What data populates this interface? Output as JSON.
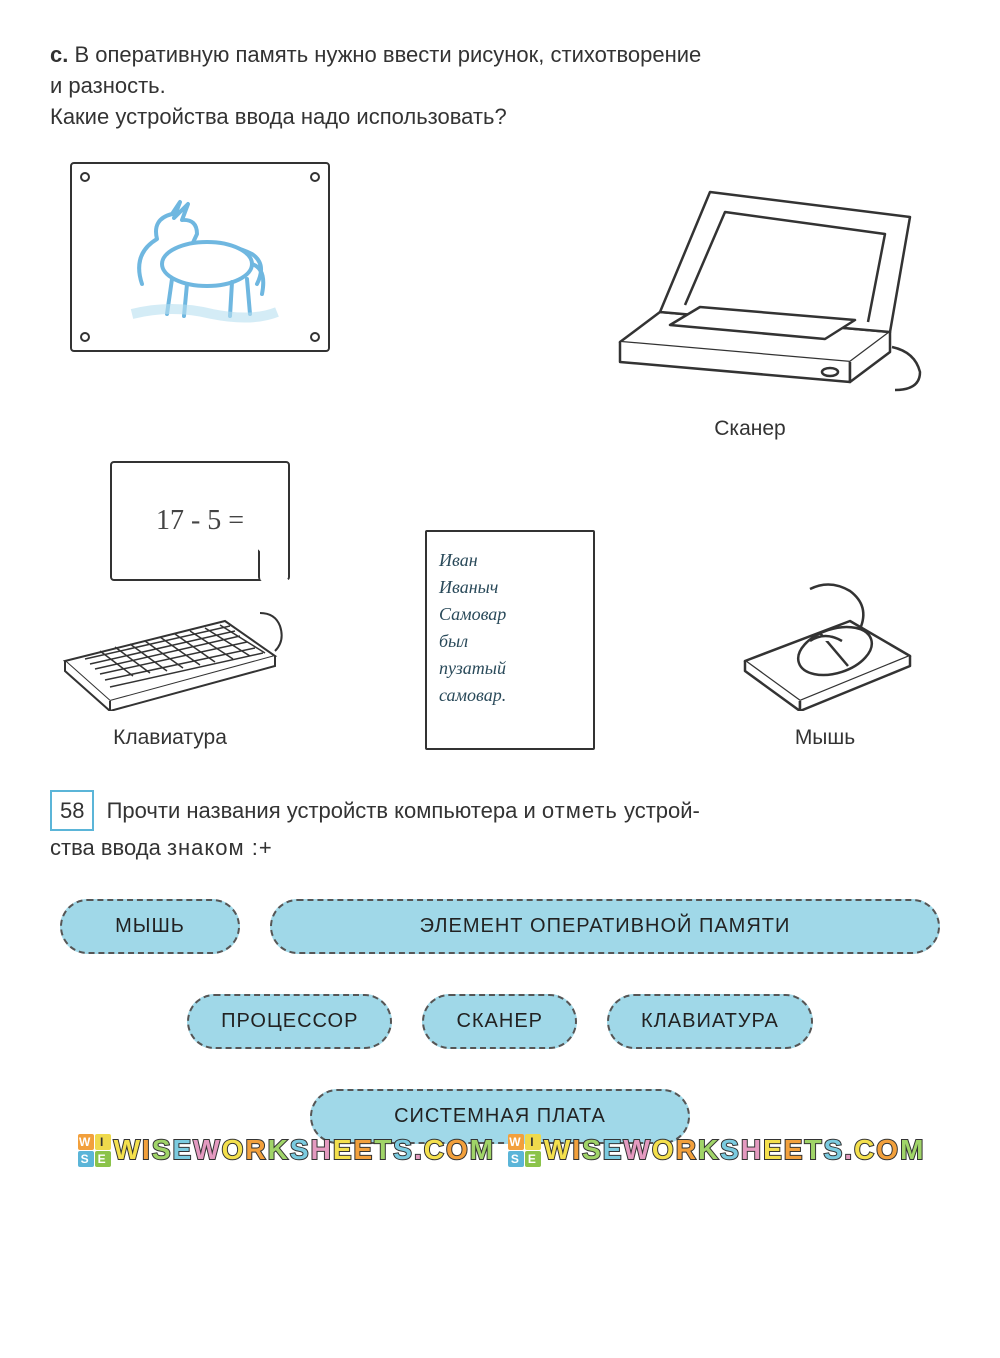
{
  "intro": {
    "marker": "c.",
    "line1_rest": "В оперативную память нужно ввести рисунок, стихотворение",
    "line2": "и разность.",
    "line3": "Какие устройства ввода надо использовать?"
  },
  "devices": {
    "scanner_label": "Сканер",
    "keyboard_label": "Клавиатура",
    "mouse_label": "Мышь"
  },
  "notes": {
    "math_text": "17 - 5 =",
    "poem_lines": [
      "Иван",
      "Иваныч",
      "Самовар",
      "был",
      "пузатый",
      "самовар."
    ]
  },
  "task58": {
    "number": "58",
    "text_a": "Прочти названия устройств компьютера и ",
    "text_b_spaced": "отметь",
    "text_c": " устрой-",
    "line2_a": "ства ввода ",
    "line2_b_spaced": "знаком :+"
  },
  "chips": {
    "mouse": "МЫШЬ",
    "ram": "ЭЛЕМЕНТ ОПЕРАТИВНОЙ ПАМЯТИ",
    "cpu": "ПРОЦЕССОР",
    "scanner": "СКАНЕР",
    "keyboard": "КЛАВИАТУРА",
    "mb": "СИСТЕМНАЯ ПЛАТА"
  },
  "watermark": {
    "text": "WISEWORKSHEETS.COM",
    "cube": "WISE"
  },
  "colors": {
    "chip_bg": "#a0d8e8",
    "chip_border": "#555555",
    "horse_color": "#6fb7e0",
    "line_color": "#333333",
    "task_num_border": "#5bb5d8"
  }
}
